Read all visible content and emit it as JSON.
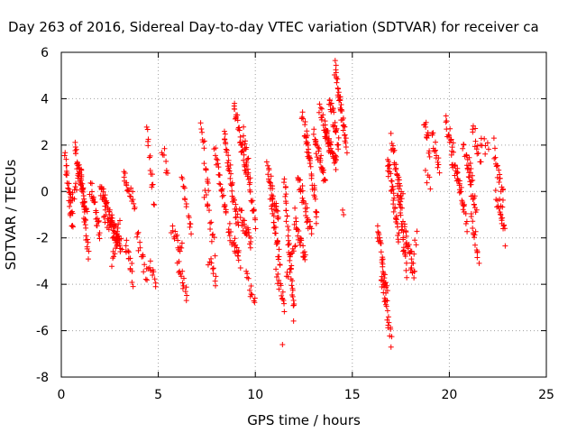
{
  "chart_data": {
    "type": "scatter",
    "title": "Day 263 of 2016, Sidereal Day-to-day VTEC variation (SDTVAR) for receiver ca",
    "xlabel": "GPS time / hours",
    "ylabel": "SDTVAR / TECUs",
    "xlim": [
      0,
      25
    ],
    "ylim": [
      -8,
      6
    ],
    "xticks": [
      0,
      5,
      10,
      15,
      20,
      25
    ],
    "yticks": [
      -8,
      -6,
      -4,
      -2,
      0,
      2,
      4,
      6
    ],
    "grid": true,
    "marker": "+",
    "series_color": "#ff0000",
    "series": [
      {
        "name": "SDTVAR",
        "segments": [
          {
            "t0": 0.2,
            "t1": 0.6,
            "y0": 1.5,
            "y1": -1.5,
            "n": 30
          },
          {
            "t0": 0.4,
            "t1": 0.9,
            "y0": -0.5,
            "y1": 0.5,
            "n": 15
          },
          {
            "t0": 0.7,
            "t1": 1.3,
            "y0": 1.8,
            "y1": -1.0,
            "n": 40
          },
          {
            "t0": 1.0,
            "t1": 1.4,
            "y0": 1.0,
            "y1": -2.8,
            "n": 25
          },
          {
            "t0": 1.5,
            "t1": 2.0,
            "y0": 0.2,
            "y1": -1.8,
            "n": 25
          },
          {
            "t0": 2.0,
            "t1": 3.1,
            "y0": 0.2,
            "y1": -2.5,
            "n": 60
          },
          {
            "t0": 2.2,
            "t1": 2.9,
            "y0": -1.0,
            "y1": -2.0,
            "n": 25
          },
          {
            "t0": 2.6,
            "t1": 3.0,
            "y0": -3.0,
            "y1": -1.5,
            "n": 12
          },
          {
            "t0": 3.2,
            "t1": 3.8,
            "y0": 0.8,
            "y1": -0.5,
            "n": 20
          },
          {
            "t0": 3.3,
            "t1": 3.7,
            "y0": -2.0,
            "y1": -3.8,
            "n": 15
          },
          {
            "t0": 3.9,
            "t1": 4.4,
            "y0": -1.8,
            "y1": -3.8,
            "n": 15
          },
          {
            "t0": 4.4,
            "t1": 4.8,
            "y0": 3.0,
            "y1": -0.5,
            "n": 15
          },
          {
            "t0": 4.5,
            "t1": 4.9,
            "y0": -3.0,
            "y1": -4.0,
            "n": 10
          },
          {
            "t0": 5.2,
            "t1": 5.5,
            "y0": 1.8,
            "y1": 0.8,
            "n": 8
          },
          {
            "t0": 5.7,
            "t1": 6.2,
            "y0": -1.5,
            "y1": -2.5,
            "n": 15
          },
          {
            "t0": 6.0,
            "t1": 6.5,
            "y0": -3.0,
            "y1": -4.5,
            "n": 15
          },
          {
            "t0": 6.2,
            "t1": 6.7,
            "y0": 0.8,
            "y1": -2.0,
            "n": 15
          },
          {
            "t0": 7.2,
            "t1": 7.6,
            "y0": 2.8,
            "y1": 0.2,
            "n": 15
          },
          {
            "t0": 7.4,
            "t1": 7.9,
            "y0": 0.0,
            "y1": -2.5,
            "n": 15
          },
          {
            "t0": 7.6,
            "t1": 8.0,
            "y0": -3.0,
            "y1": -4.0,
            "n": 10
          },
          {
            "t0": 7.9,
            "t1": 8.5,
            "y0": 1.8,
            "y1": -1.0,
            "n": 25
          },
          {
            "t0": 8.4,
            "t1": 9.1,
            "y0": 2.5,
            "y1": -1.5,
            "n": 40
          },
          {
            "t0": 8.6,
            "t1": 9.2,
            "y0": -1.5,
            "y1": -3.0,
            "n": 25
          },
          {
            "t0": 8.9,
            "t1": 9.6,
            "y0": 3.8,
            "y1": 0.5,
            "n": 35
          },
          {
            "t0": 9.2,
            "t1": 9.8,
            "y0": -1.0,
            "y1": -2.2,
            "n": 25
          },
          {
            "t0": 9.4,
            "t1": 10.0,
            "y0": 2.5,
            "y1": -1.5,
            "n": 30
          },
          {
            "t0": 9.5,
            "t1": 10.0,
            "y0": -3.5,
            "y1": -5.0,
            "n": 12
          },
          {
            "t0": 10.6,
            "t1": 11.2,
            "y0": 1.0,
            "y1": -1.2,
            "n": 30
          },
          {
            "t0": 10.8,
            "t1": 11.3,
            "y0": -0.5,
            "y1": -3.0,
            "n": 25
          },
          {
            "t0": 11.1,
            "t1": 11.5,
            "y0": -3.5,
            "y1": -5.0,
            "n": 15
          },
          {
            "t0": 11.5,
            "t1": 12.0,
            "y0": 0.5,
            "y1": -5.3,
            "n": 40
          },
          {
            "t0": 11.6,
            "t1": 12.1,
            "y0": -4.0,
            "y1": -2.0,
            "n": 12
          },
          {
            "t0": 12.0,
            "t1": 12.6,
            "y0": -1.0,
            "y1": -3.0,
            "n": 25
          },
          {
            "t0": 12.2,
            "t1": 12.9,
            "y0": 0.8,
            "y1": -2.0,
            "n": 30
          },
          {
            "t0": 12.4,
            "t1": 12.8,
            "y0": 3.5,
            "y1": 1.0,
            "n": 15
          },
          {
            "t0": 12.6,
            "t1": 13.2,
            "y0": 2.8,
            "y1": -1.2,
            "n": 30
          },
          {
            "t0": 13.0,
            "t1": 13.6,
            "y0": 2.5,
            "y1": 0.5,
            "n": 30
          },
          {
            "t0": 13.3,
            "t1": 13.8,
            "y0": 3.8,
            "y1": 1.8,
            "n": 20
          },
          {
            "t0": 13.6,
            "t1": 14.2,
            "y0": 2.5,
            "y1": 1.2,
            "n": 35
          },
          {
            "t0": 13.8,
            "t1": 14.3,
            "y0": 4.0,
            "y1": 2.0,
            "n": 25
          },
          {
            "t0": 14.1,
            "t1": 14.7,
            "y0": 5.4,
            "y1": 2.0,
            "n": 40
          },
          {
            "t0": 16.3,
            "t1": 16.8,
            "y0": -1.5,
            "y1": -4.5,
            "n": 30
          },
          {
            "t0": 16.5,
            "t1": 17.0,
            "y0": -3.5,
            "y1": -6.5,
            "n": 25
          },
          {
            "t0": 16.8,
            "t1": 17.4,
            "y0": 1.5,
            "y1": -2.0,
            "n": 35
          },
          {
            "t0": 17.0,
            "t1": 17.6,
            "y0": 2.2,
            "y1": -0.5,
            "n": 30
          },
          {
            "t0": 17.3,
            "t1": 17.8,
            "y0": 0.5,
            "y1": -3.5,
            "n": 25
          },
          {
            "t0": 17.6,
            "t1": 18.2,
            "y0": -1.5,
            "y1": -3.5,
            "n": 25
          },
          {
            "t0": 18.0,
            "t1": 18.3,
            "y0": -3.5,
            "y1": -2.0,
            "n": 8
          },
          {
            "t0": 18.7,
            "t1": 19.0,
            "y0": 3.0,
            "y1": 1.8,
            "n": 12
          },
          {
            "t0": 18.8,
            "t1": 19.0,
            "y0": 0.6,
            "y1": 0.3,
            "n": 5
          },
          {
            "t0": 19.1,
            "t1": 19.5,
            "y0": 2.5,
            "y1": 1.0,
            "n": 15
          },
          {
            "t0": 19.8,
            "t1": 20.2,
            "y0": 3.0,
            "y1": 2.0,
            "n": 15
          },
          {
            "t0": 20.1,
            "t1": 20.6,
            "y0": 1.5,
            "y1": 0.0,
            "n": 20
          },
          {
            "t0": 20.4,
            "t1": 20.9,
            "y0": 1.0,
            "y1": -1.5,
            "n": 20
          },
          {
            "t0": 20.7,
            "t1": 21.2,
            "y0": 2.0,
            "y1": 0.5,
            "n": 15
          },
          {
            "t0": 20.9,
            "t1": 21.4,
            "y0": 1.2,
            "y1": -1.0,
            "n": 20
          },
          {
            "t0": 21.1,
            "t1": 21.5,
            "y0": -1.0,
            "y1": -2.8,
            "n": 15
          },
          {
            "t0": 21.2,
            "t1": 21.6,
            "y0": 2.7,
            "y1": 1.5,
            "n": 12
          },
          {
            "t0": 21.6,
            "t1": 22.0,
            "y0": 2.2,
            "y1": 1.8,
            "n": 8
          },
          {
            "t0": 22.3,
            "t1": 22.8,
            "y0": 2.0,
            "y1": -0.5,
            "n": 20
          },
          {
            "t0": 22.4,
            "t1": 22.9,
            "y0": 0.0,
            "y1": -2.0,
            "n": 20
          }
        ],
        "isolated_points": [
          [
            11.4,
            -6.6
          ],
          [
            14.5,
            -0.8
          ],
          [
            14.55,
            -1.0
          ]
        ]
      }
    ]
  }
}
